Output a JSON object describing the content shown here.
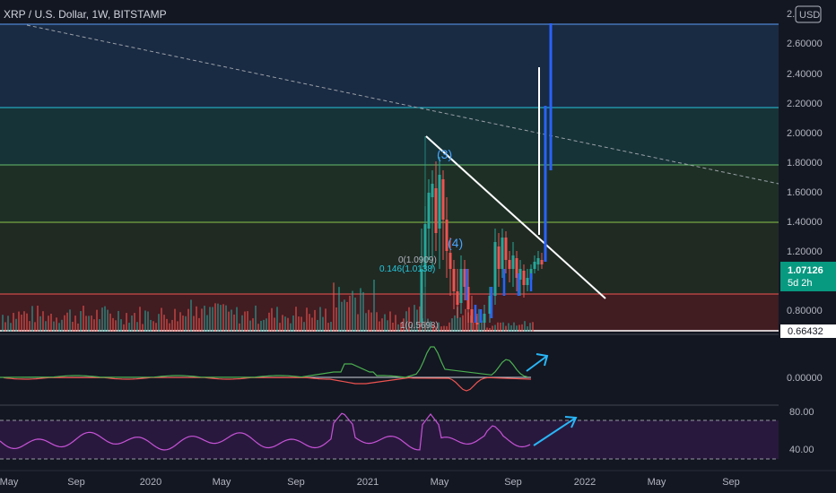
{
  "title": "XRP / U.S. Dollar, 1W, BITSTAMP",
  "currency_button": "USD",
  "colors": {
    "background": "#131722",
    "bullish": "#26a69a",
    "bearish": "#ef5350",
    "projection": "#2962ff",
    "oscillator": "#9c27b0",
    "price_badge": "#089981"
  },
  "price_axis": {
    "top_label": "2.",
    "labels": [
      "2.60000",
      "2.40000",
      "2.20000",
      "2.00000",
      "1.80000",
      "1.60000",
      "1.40000",
      "1.20000",
      "0.80000"
    ]
  },
  "current_price": {
    "value": "1.07126",
    "countdown": "5d 2h"
  },
  "low_marker": "0.66432",
  "oscillator1_axis": {
    "labels": [
      "0.00000"
    ]
  },
  "oscillator2_axis": {
    "labels": [
      "80.00",
      "40.00"
    ]
  },
  "time_axis": {
    "labels": [
      "May",
      "Sep",
      "2020",
      "May",
      "Sep",
      "2021",
      "May",
      "Sep",
      "2022",
      "May",
      "Sep"
    ]
  },
  "fib_labels": {
    "level_0": "0(1.0909)",
    "level_0146": "0.146(1.0138)",
    "level_bottom": "1(0.5698)"
  },
  "wave_labels": {
    "w3": "(3)",
    "w4": "(4)"
  },
  "chart_data": {
    "type": "candlestick",
    "symbol": "XRP / U.S. Dollar",
    "interval": "1W",
    "exchange": "BITSTAMP",
    "ylim": [
      0.66432,
      2.75
    ],
    "current_price": 1.07126,
    "horizontal_levels": [
      2.72,
      2.16,
      1.78,
      1.39,
      0.905,
      0.66432
    ],
    "projection_moves": [
      {
        "from": 1.1,
        "to": 2.15
      },
      {
        "from": 1.72,
        "to": 2.72
      }
    ]
  }
}
